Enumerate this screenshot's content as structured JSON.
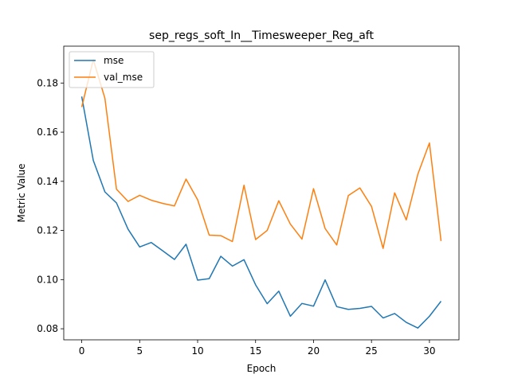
{
  "chart_data": {
    "type": "line",
    "title": "sep_regs_soft_In__Timesweeper_Reg_aft",
    "xlabel": "Epoch",
    "ylabel": "Metric Value",
    "xlim": [
      -1.55,
      32.55
    ],
    "ylim": [
      0.0755,
      0.195
    ],
    "xticks": [
      0,
      5,
      10,
      15,
      20,
      25,
      30
    ],
    "yticks": [
      0.08,
      0.1,
      0.12,
      0.14,
      0.16,
      0.18
    ],
    "ytick_labels": [
      "0.08",
      "0.10",
      "0.12",
      "0.14",
      "0.16",
      "0.18"
    ],
    "grid": false,
    "legend_position": "top-left",
    "series": [
      {
        "name": "mse",
        "color": "#1f77b4",
        "x": [
          0,
          1,
          2,
          3,
          4,
          5,
          6,
          7,
          8,
          9,
          10,
          11,
          12,
          13,
          14,
          15,
          16,
          17,
          18,
          19,
          20,
          21,
          22,
          23,
          24,
          25,
          26,
          27,
          28,
          29,
          30,
          31
        ],
        "values": [
          0.1745,
          0.1485,
          0.1357,
          0.1312,
          0.1205,
          0.1133,
          0.1151,
          0.1117,
          0.1082,
          0.1144,
          0.0998,
          0.1004,
          0.1095,
          0.1055,
          0.1081,
          0.0979,
          0.0902,
          0.0953,
          0.0851,
          0.0903,
          0.0892,
          0.0999,
          0.089,
          0.0879,
          0.0883,
          0.0891,
          0.0844,
          0.0862,
          0.0826,
          0.0803,
          0.0851,
          0.0912
        ]
      },
      {
        "name": "val_mse",
        "color": "#ff7f0e",
        "x": [
          0,
          1,
          2,
          3,
          4,
          5,
          6,
          7,
          8,
          9,
          10,
          11,
          12,
          13,
          14,
          15,
          16,
          17,
          18,
          19,
          20,
          21,
          22,
          23,
          24,
          25,
          26,
          27,
          28,
          29,
          30,
          31
        ],
        "values": [
          0.1702,
          0.1895,
          0.1738,
          0.1368,
          0.1318,
          0.1343,
          0.1323,
          0.131,
          0.13,
          0.1409,
          0.1325,
          0.1181,
          0.1179,
          0.1155,
          0.1384,
          0.1163,
          0.12,
          0.1321,
          0.1226,
          0.1165,
          0.137,
          0.1208,
          0.1141,
          0.1342,
          0.1373,
          0.1298,
          0.1127,
          0.1353,
          0.1243,
          0.1429,
          0.1556,
          0.1157
        ]
      }
    ]
  }
}
